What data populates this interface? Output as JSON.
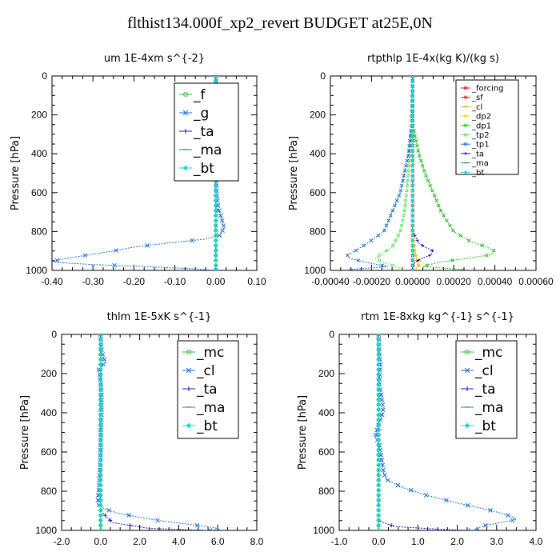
{
  "figure": {
    "title": "flthist134.000f_xp2_revert  BUDGET at25E,0N"
  },
  "colors": {
    "green": "#22c022",
    "blue": "#1a6fd6",
    "navy": "#1a1ab8",
    "red": "#e11919",
    "orange": "#f2a31c",
    "yellow": "#e8d81a",
    "lightgreen": "#66e066",
    "cyan": "#19d6d6",
    "teal": "#188a8a"
  },
  "chart_data": [
    {
      "type": "line",
      "title": "um   1E-4xm s^{-2}",
      "ylabel": "Pressure [hPa]",
      "xlim": [
        -0.4,
        0.1
      ],
      "ylim": [
        1000,
        0
      ],
      "xticks": [
        "-0.40",
        "-0.30",
        "-0.20",
        "-0.10",
        "0.00",
        "0.10"
      ],
      "xtick_values": [
        -0.4,
        -0.3,
        -0.2,
        -0.1,
        0.0,
        0.1
      ],
      "yticks": [
        "0",
        "200",
        "400",
        "600",
        "800",
        "1000"
      ],
      "ytick_values": [
        0,
        200,
        400,
        600,
        800,
        1000
      ],
      "legend": {
        "position": "top-right",
        "size": "large"
      },
      "series": [
        {
          "name": "_f",
          "color": "green",
          "marker": "circle",
          "pressure": [
            0,
            200,
            400,
            600,
            800,
            1000
          ],
          "values": [
            0,
            0,
            0,
            0,
            0,
            0
          ]
        },
        {
          "name": "_g",
          "color": "blue",
          "marker": "x",
          "pressure": [
            0,
            100,
            130,
            145,
            160,
            180,
            210,
            260,
            320,
            400,
            500,
            600,
            680,
            740,
            780,
            820,
            840,
            860,
            880,
            900,
            920,
            940,
            950,
            955,
            960,
            970,
            980,
            990,
            1000
          ],
          "values": [
            0.0,
            0.002,
            0.018,
            0.028,
            0.033,
            0.022,
            0.008,
            0.004,
            0.003,
            0.002,
            0.001,
            0.002,
            0.006,
            0.015,
            0.02,
            0.01,
            -0.03,
            -0.12,
            -0.2,
            -0.25,
            -0.31,
            -0.37,
            -0.39,
            -0.4,
            -0.38,
            -0.3,
            -0.18,
            -0.07,
            0.0
          ]
        },
        {
          "name": "_ta",
          "color": "navy",
          "marker": "plus",
          "pressure": [
            0,
            200,
            400,
            600,
            800,
            1000
          ],
          "values": [
            0,
            0,
            0,
            0,
            0,
            0
          ]
        },
        {
          "name": "_ma",
          "color": "teal",
          "marker": "dash",
          "pressure": [
            0,
            200,
            400,
            600,
            800,
            1000
          ],
          "values": [
            0,
            0,
            0,
            0,
            0,
            0
          ]
        },
        {
          "name": "_bt",
          "color": "cyan",
          "marker": "diamond",
          "pressure": [
            0,
            200,
            400,
            600,
            800,
            1000
          ],
          "values": [
            0,
            0,
            0,
            0,
            0,
            0
          ]
        }
      ]
    },
    {
      "type": "line",
      "title": "rtpthlp   1E-4x(kg K)/(kg s)",
      "ylabel": "Pressure [hPa]",
      "xlim": [
        -0.0004,
        0.0006
      ],
      "ylim": [
        1000,
        0
      ],
      "xticks": [
        "-0.00040",
        "-0.00020",
        "0.00000",
        "0.00020",
        "0.00040",
        "0.00060"
      ],
      "xtick_values": [
        -0.0004,
        -0.0002,
        0.0,
        0.0002,
        0.0004,
        0.0006
      ],
      "yticks": [
        "0",
        "200",
        "400",
        "600",
        "800",
        "1000"
      ],
      "ytick_values": [
        0,
        200,
        400,
        600,
        800,
        1000
      ],
      "legend": {
        "position": "top-right",
        "size": "small"
      },
      "series": [
        {
          "name": "_forcing",
          "color": "red",
          "marker": "x",
          "pressure": [
            0,
            200,
            400,
            600,
            800,
            1000
          ],
          "values": [
            0,
            0,
            0,
            0,
            0,
            0
          ]
        },
        {
          "name": "_sf",
          "color": "red",
          "marker": "x",
          "pressure": [
            0,
            200,
            400,
            600,
            800,
            1000
          ],
          "values": [
            0,
            0,
            0,
            0,
            0,
            0
          ]
        },
        {
          "name": "_cl",
          "color": "orange",
          "marker": "plus",
          "pressure": [
            0,
            800,
            960,
            980,
            1000
          ],
          "values": [
            0,
            0,
            2e-05,
            3e-05,
            0
          ]
        },
        {
          "name": "_dp2",
          "color": "yellow",
          "marker": "circle",
          "pressure": [
            0,
            900,
            960,
            990,
            1000
          ],
          "values": [
            0,
            0,
            4e-05,
            2e-05,
            0
          ]
        },
        {
          "name": "_dp1",
          "color": "green",
          "marker": "x",
          "pressure": [
            0,
            250,
            300,
            400,
            500,
            600,
            700,
            800,
            850,
            880,
            900,
            920,
            940,
            960,
            980,
            995
          ],
          "values": [
            0,
            0,
            1e-05,
            3e-05,
            6e-05,
            0.0001,
            0.00014,
            0.0002,
            0.00028,
            0.00036,
            0.0004,
            0.00038,
            0.00025,
            0.00012,
            5e-05,
            0.00024
          ]
        },
        {
          "name": "_tp2",
          "color": "lightgreen",
          "marker": "circle",
          "pressure": [
            0,
            300,
            500,
            700,
            800,
            880,
            920,
            940,
            960,
            990
          ],
          "values": [
            0,
            -1e-05,
            -2e-05,
            -4e-05,
            -6e-05,
            -0.0001,
            -0.00016,
            -0.00018,
            -0.00014,
            -5e-05
          ]
        },
        {
          "name": "_tp1",
          "color": "blue",
          "marker": "x",
          "pressure": [
            0,
            250,
            300,
            400,
            500,
            600,
            700,
            800,
            860,
            900,
            920,
            940,
            960,
            980,
            995
          ],
          "values": [
            0,
            0,
            -1e-05,
            -2e-05,
            -4e-05,
            -6e-05,
            -0.0001,
            -0.00014,
            -0.00022,
            -0.00028,
            -0.00032,
            -0.0003,
            -0.00022,
            -0.00012,
            -0.0003
          ]
        },
        {
          "name": "_ta",
          "color": "navy",
          "marker": "plus",
          "pressure": [
            0,
            800,
            860,
            880,
            900,
            920,
            940,
            960,
            980,
            1000
          ],
          "values": [
            0,
            0,
            3e-05,
            6e-05,
            0.0001,
            9e-05,
            4e-05,
            1e-05,
            0,
            0
          ]
        },
        {
          "name": "_ma",
          "color": "teal",
          "marker": "dash",
          "pressure": [
            0,
            200,
            400,
            600,
            800,
            1000
          ],
          "values": [
            0,
            0,
            0,
            0,
            0,
            0
          ]
        },
        {
          "name": "_bt",
          "color": "cyan",
          "marker": "diamond",
          "pressure": [
            0,
            200,
            400,
            600,
            800,
            1000
          ],
          "values": [
            0,
            0,
            0,
            0,
            0,
            0
          ]
        }
      ]
    },
    {
      "type": "line",
      "title": "thlm   1E-5xK s^{-1}",
      "ylabel": "Pressure [hPa]",
      "xlim": [
        -2.0,
        8.0
      ],
      "ylim": [
        1000,
        0
      ],
      "xticks": [
        "-2.0",
        "0.0",
        "2.0",
        "4.0",
        "6.0",
        "8.0"
      ],
      "xtick_values": [
        -2,
        0,
        2,
        4,
        6,
        8
      ],
      "yticks": [
        "0",
        "200",
        "400",
        "600",
        "800",
        "1000"
      ],
      "ytick_values": [
        0,
        200,
        400,
        600,
        800,
        1000
      ],
      "legend": {
        "position": "top-right",
        "size": "large"
      },
      "series": [
        {
          "name": "_mc",
          "color": "green",
          "marker": "circle",
          "pressure": [
            0,
            200,
            400,
            600,
            800,
            1000
          ],
          "values": [
            0,
            0,
            0,
            0,
            0,
            0
          ]
        },
        {
          "name": "_cl",
          "color": "blue",
          "marker": "x",
          "pressure": [
            0,
            80,
            120,
            140,
            160,
            180,
            200,
            260,
            320,
            400,
            500,
            600,
            700,
            800,
            840,
            870,
            890,
            910,
            930,
            950,
            970,
            985,
            995,
            1000
          ],
          "values": [
            0,
            0.05,
            0.15,
            0.25,
            0.1,
            -0.1,
            -0.05,
            0.02,
            0.05,
            0.05,
            0.02,
            0,
            -0.05,
            -0.1,
            -0.15,
            -0.12,
            0.2,
            0.8,
            1.8,
            3.0,
            4.6,
            5.8,
            6.1,
            5.6
          ]
        },
        {
          "name": "_ta",
          "color": "navy",
          "marker": "plus",
          "pressure": [
            0,
            900,
            960,
            990,
            1000
          ],
          "values": [
            0,
            0,
            0.6,
            2.5,
            5.5
          ]
        },
        {
          "name": "_ma",
          "color": "teal",
          "marker": "dash",
          "pressure": [
            0,
            200,
            400,
            600,
            800,
            1000
          ],
          "values": [
            0,
            0,
            0,
            0,
            0,
            0
          ]
        },
        {
          "name": "_bt",
          "color": "cyan",
          "marker": "diamond",
          "pressure": [
            0,
            200,
            400,
            600,
            800,
            1000
          ],
          "values": [
            0,
            0,
            0,
            0,
            0,
            0
          ]
        }
      ]
    },
    {
      "type": "line",
      "title": "rtm   1E-8xkg kg^{-1} s^{-1}",
      "ylabel": "Pressure [hPa]",
      "xlim": [
        -1.0,
        4.0
      ],
      "ylim": [
        1000,
        0
      ],
      "xticks": [
        "-1.0",
        "0.0",
        "1.0",
        "2.0",
        "3.0",
        "4.0"
      ],
      "xtick_values": [
        -1,
        0,
        1,
        2,
        3,
        4
      ],
      "yticks": [
        "0",
        "200",
        "400",
        "600",
        "800",
        "1000"
      ],
      "ytick_values": [
        0,
        200,
        400,
        600,
        800,
        1000
      ],
      "legend": {
        "position": "top-right",
        "size": "large"
      },
      "series": [
        {
          "name": "_mc",
          "color": "green",
          "marker": "circle",
          "pressure": [
            0,
            200,
            400,
            600,
            800,
            1000
          ],
          "values": [
            0,
            0,
            0,
            0,
            0,
            0
          ]
        },
        {
          "name": "_cl",
          "color": "blue",
          "marker": "x",
          "pressure": [
            0,
            100,
            150,
            200,
            260,
            320,
            380,
            420,
            470,
            520,
            560,
            600,
            660,
            700,
            740,
            780,
            820,
            860,
            900,
            930,
            945,
            960,
            975,
            990,
            1000
          ],
          "values": [
            0,
            0.02,
            0.05,
            0.03,
            0.02,
            0.08,
            0.12,
            0.08,
            -0.02,
            -0.08,
            0.02,
            0.05,
            0.1,
            0.12,
            0.2,
            0.6,
            1.2,
            2.0,
            2.9,
            3.4,
            3.5,
            3.1,
            2.7,
            2.5,
            2.5
          ]
        },
        {
          "name": "_ta",
          "color": "navy",
          "marker": "plus",
          "pressure": [
            0,
            950,
            980,
            995,
            1000
          ],
          "values": [
            0,
            0,
            0.4,
            1.6,
            2.3
          ]
        },
        {
          "name": "_ma",
          "color": "teal",
          "marker": "dash",
          "pressure": [
            0,
            200,
            400,
            600,
            800,
            1000
          ],
          "values": [
            0,
            0,
            0,
            0,
            0,
            0
          ]
        },
        {
          "name": "_bt",
          "color": "cyan",
          "marker": "diamond",
          "pressure": [
            0,
            200,
            400,
            600,
            800,
            1000
          ],
          "values": [
            0,
            0,
            0,
            0,
            0,
            0
          ]
        }
      ]
    }
  ]
}
